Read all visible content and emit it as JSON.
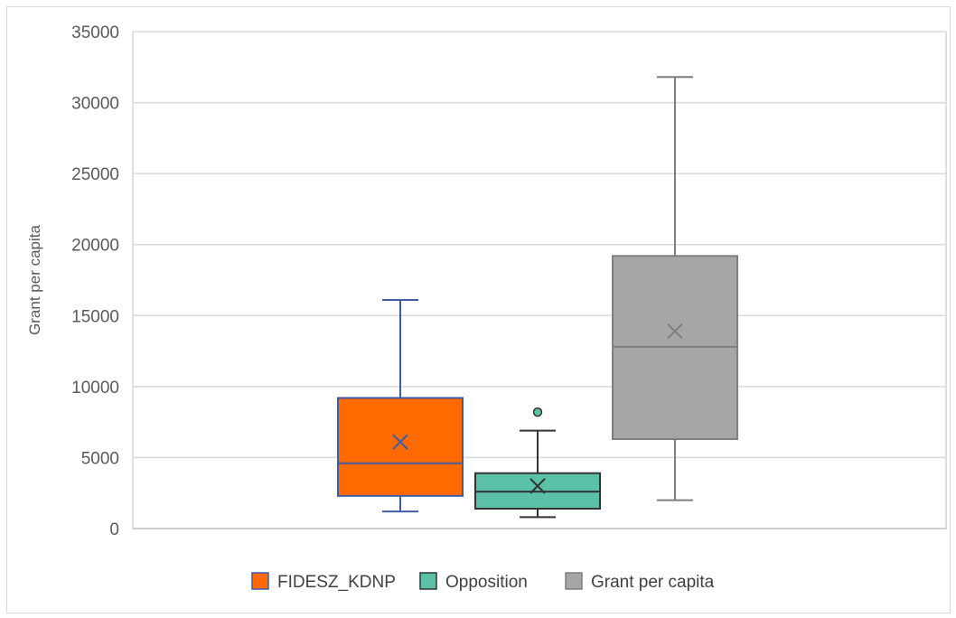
{
  "chart_data": {
    "type": "boxplot",
    "title": "",
    "xlabel": "",
    "ylabel": "Grant per capita",
    "ylim": [
      0,
      35000
    ],
    "yticks": [
      0,
      5000,
      10000,
      15000,
      20000,
      25000,
      30000,
      35000
    ],
    "grid": true,
    "legend_position": "bottom",
    "series": [
      {
        "name": "FIDESZ_KDNP",
        "color": "#ff6a00",
        "stroke": "#3f5da6",
        "min": 1200,
        "q1": 2300,
        "median": 4600,
        "q3": 9200,
        "max": 16100,
        "mean": 6100,
        "outliers": []
      },
      {
        "name": "Opposition",
        "color": "#5bc1a6",
        "stroke": "#333333",
        "min": 800,
        "q1": 1400,
        "median": 2600,
        "q3": 3900,
        "max": 6900,
        "mean": 3000,
        "outliers": [
          8200
        ]
      },
      {
        "name": "Grant per capita",
        "color": "#a6a6a6",
        "stroke": "#7f7f7f",
        "min": 2000,
        "q1": 6300,
        "median": 12800,
        "q3": 19200,
        "max": 31800,
        "mean": 13900,
        "outliers": []
      }
    ]
  }
}
